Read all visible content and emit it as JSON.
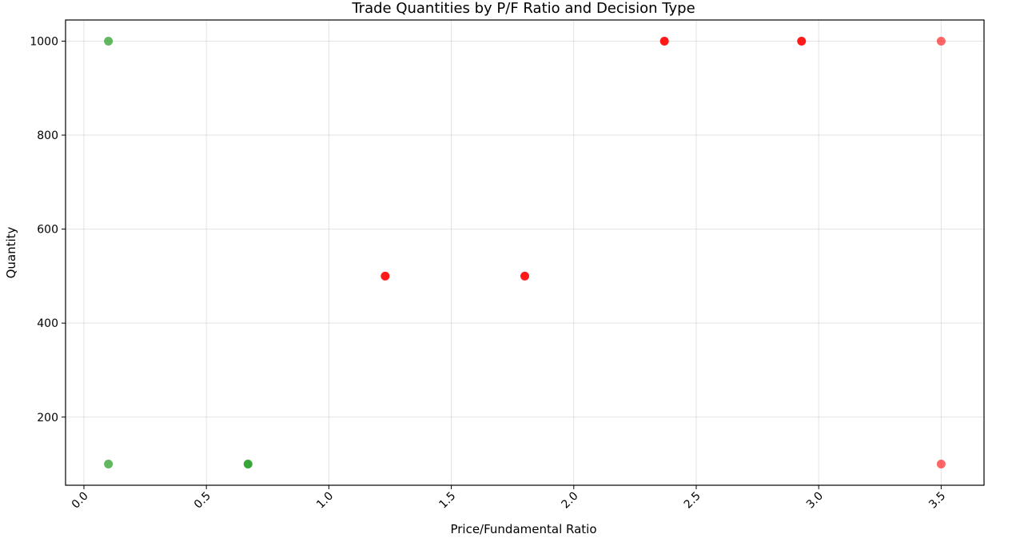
{
  "chart_data": {
    "type": "scatter",
    "title": "Trade Quantities by P/F Ratio and Decision Type",
    "xlabel": "Price/Fundamental Ratio",
    "ylabel": "Quantity",
    "xlim": [
      -0.075,
      3.675
    ],
    "ylim": [
      55,
      1045
    ],
    "xticks": [
      "0.0",
      "0.5",
      "1.0",
      "1.5",
      "2.0",
      "2.5",
      "3.0",
      "3.5"
    ],
    "xtick_values": [
      0,
      0.5,
      1,
      1.5,
      2,
      2.5,
      3,
      3.5
    ],
    "yticks": [
      "200",
      "400",
      "600",
      "800",
      "1000"
    ],
    "ytick_values": [
      200,
      400,
      600,
      800,
      1000
    ],
    "grid": true,
    "series": [
      {
        "color": "#2ca02c",
        "points": [
          {
            "x": 0.1,
            "y": 1000,
            "alpha": 0.75
          },
          {
            "x": 0.1,
            "y": 100,
            "alpha": 0.75
          },
          {
            "x": 0.67,
            "y": 100,
            "alpha": 0.95
          }
        ]
      },
      {
        "color": "#ff0000",
        "points": [
          {
            "x": 1.23,
            "y": 500,
            "alpha": 0.9
          },
          {
            "x": 1.8,
            "y": 500,
            "alpha": 0.9
          },
          {
            "x": 2.37,
            "y": 1000,
            "alpha": 0.9
          },
          {
            "x": 2.93,
            "y": 1000,
            "alpha": 0.9
          },
          {
            "x": 3.5,
            "y": 1000,
            "alpha": 0.6
          },
          {
            "x": 3.5,
            "y": 100,
            "alpha": 0.6
          }
        ]
      }
    ]
  }
}
